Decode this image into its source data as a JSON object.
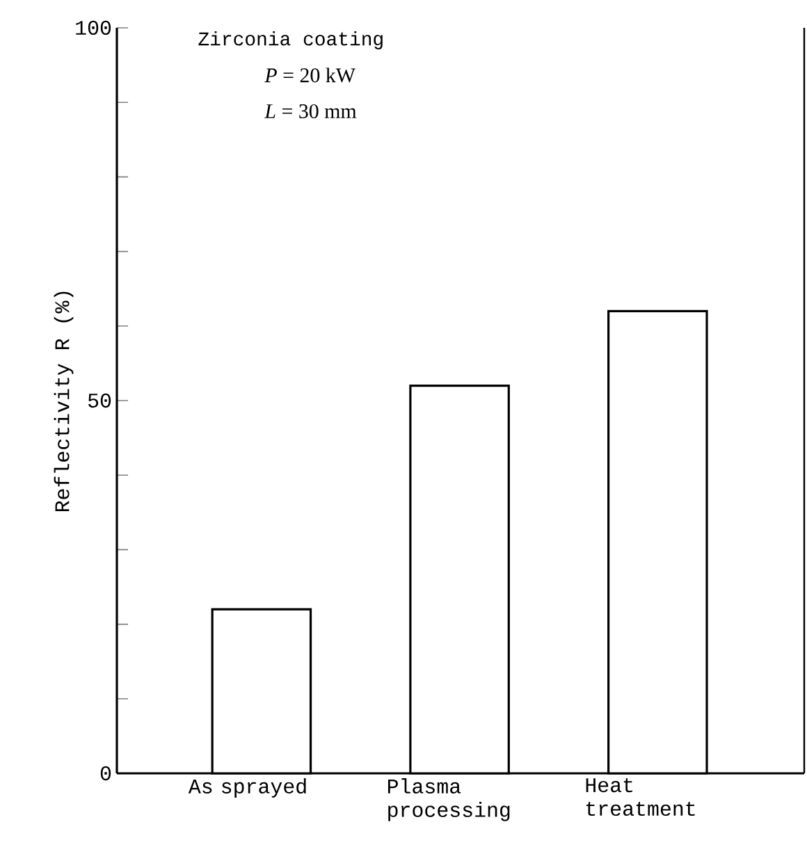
{
  "chart_data": {
    "type": "bar",
    "ylabel": "Reflectivity   R (%)",
    "categories": [
      "As sprayed",
      "Plasma processing",
      "Heat treatment"
    ],
    "values": [
      22,
      52,
      62
    ],
    "color": "#000000",
    "ylim": [
      0,
      100
    ],
    "yticks": [
      0,
      {
        "value": 10,
        "label": null
      },
      {
        "value": 20,
        "label": null
      },
      {
        "value": 30,
        "label": null
      },
      {
        "value": 40,
        "label": null
      },
      50,
      {
        "value": 60,
        "label": null
      },
      {
        "value": 70,
        "label": null
      },
      {
        "value": 80,
        "label": null
      },
      {
        "value": 90,
        "label": null
      },
      100
    ],
    "annotations": [
      "Zirconia coating",
      "*P* = 20 kW",
      "*L* = 30 mm"
    ]
  }
}
